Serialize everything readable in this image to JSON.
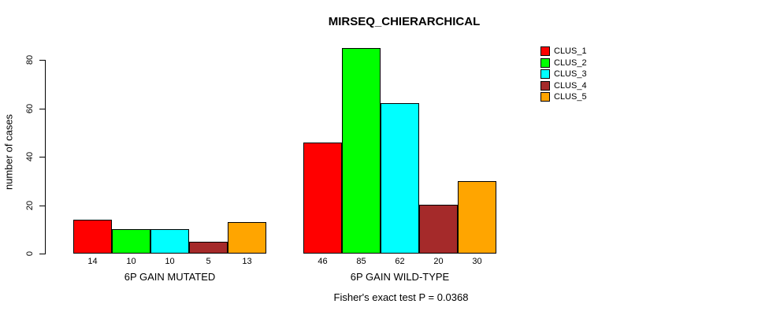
{
  "chart_data": {
    "type": "bar",
    "title": "MIRSEQ_CHIERARCHICAL",
    "ylabel": "number of cases",
    "xlabel": "",
    "annotation": "Fisher's exact test P = 0.0368",
    "categories": [
      "6P GAIN MUTATED",
      "6P GAIN WILD-TYPE"
    ],
    "series": [
      {
        "name": "CLUS_1",
        "color": "#FF0000",
        "values": [
          14,
          46
        ]
      },
      {
        "name": "CLUS_2",
        "color": "#00FF00",
        "values": [
          10,
          85
        ]
      },
      {
        "name": "CLUS_3",
        "color": "#00FFFF",
        "values": [
          10,
          62
        ]
      },
      {
        "name": "CLUS_4",
        "color": "#A52A2A",
        "values": [
          5,
          20
        ]
      },
      {
        "name": "CLUS_5",
        "color": "#FFA500",
        "values": [
          13,
          30
        ]
      }
    ],
    "bar_value_labels": [
      "14",
      "10",
      "10",
      "5",
      "13",
      "46",
      "85",
      "62",
      "20",
      "30"
    ],
    "yticks": [
      "0",
      "20",
      "40",
      "60",
      "80"
    ],
    "ylim": [
      0,
      80
    ],
    "grid": false,
    "legend_position": "top-right",
    "background_color": "#FFFFFF",
    "axis_color": "#000000"
  }
}
